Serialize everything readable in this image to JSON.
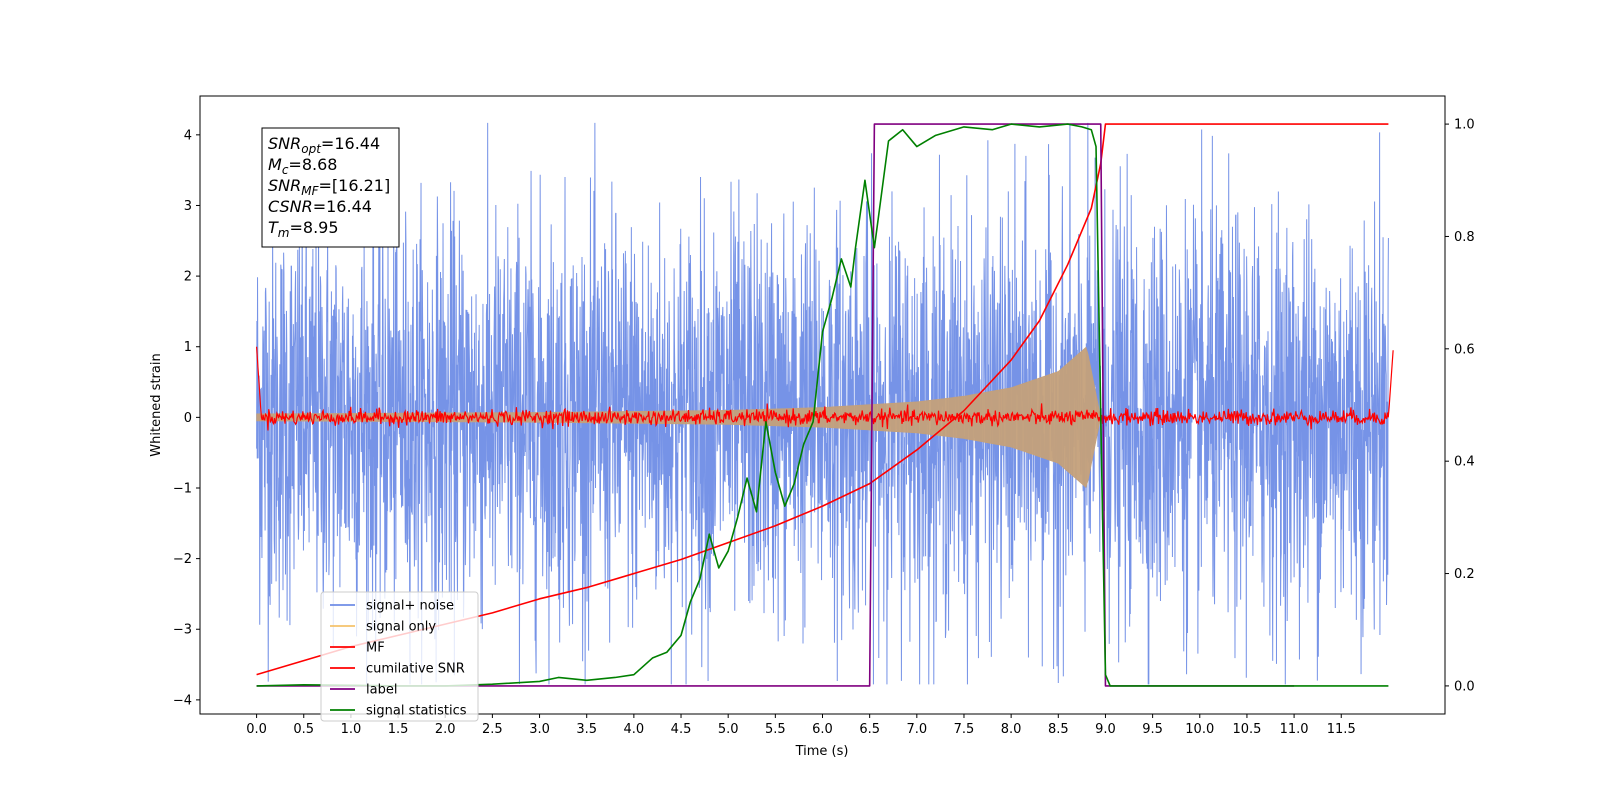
{
  "chart_data": {
    "type": "line",
    "xlabel": "Time (s)",
    "ylabel": "Whitened strain",
    "xlim": [
      -0.6,
      12.6
    ],
    "ylim": [
      -4.2,
      4.55
    ],
    "y2lim": [
      -0.05,
      1.05
    ],
    "x_ticks": [
      "0.0",
      "0.5",
      "1.0",
      "1.5",
      "2.0",
      "2.5",
      "3.0",
      "3.5",
      "4.0",
      "4.5",
      "5.0",
      "5.5",
      "6.0",
      "6.5",
      "7.0",
      "7.5",
      "8.0",
      "8.5",
      "9.0",
      "9.5",
      "10.0",
      "10.5",
      "11.0",
      "11.5"
    ],
    "y_ticks": [
      "−4",
      "−3",
      "−2",
      "−1",
      "0",
      "1",
      "2",
      "3",
      "4"
    ],
    "y2_ticks": [
      "0.0",
      "0.2",
      "0.4",
      "0.6",
      "0.8",
      "1.0"
    ],
    "info_box": [
      {
        "var": "SNR",
        "sub": "opt",
        "value": "=16.44"
      },
      {
        "var": "M",
        "sub": "c",
        "value": "=8.68"
      },
      {
        "var": "SNR",
        "sub": "MF",
        "value": "=[16.21]"
      },
      {
        "var": "CSNR",
        "sub": "",
        "value": "=16.44"
      },
      {
        "var": "T",
        "sub": "m",
        "value": "=8.95"
      }
    ],
    "legend": {
      "placement": "lower-left",
      "entries": [
        {
          "label": "signal+ noise",
          "color": "#6f8de6"
        },
        {
          "label": "signal only",
          "color": "#f5c26b"
        },
        {
          "label": "MF",
          "color": "#ff0000"
        },
        {
          "label": "cumilative SNR",
          "color": "#ff0000"
        },
        {
          "label": "label",
          "color": "#800080"
        },
        {
          "label": "signal statistics",
          "color": "#008000"
        }
      ]
    },
    "series": [
      {
        "name": "signal+ noise",
        "axis": "left",
        "color": "#6f8de6",
        "x_range": [
          0,
          12
        ],
        "envelope_typical": 2.3,
        "envelope_peak": 4.17,
        "min_observed": -3.78
      },
      {
        "name": "signal only",
        "axis": "left",
        "color": "#c4a07a",
        "x_range": [
          0,
          8.95
        ],
        "envelope_x": [
          0,
          3,
          5,
          6,
          7,
          7.5,
          8,
          8.5,
          8.8,
          8.95
        ],
        "envelope_y": [
          0.05,
          0.07,
          0.1,
          0.14,
          0.22,
          0.3,
          0.42,
          0.65,
          1.0,
          0
        ]
      },
      {
        "name": "MF",
        "axis": "left",
        "color": "#ff0000",
        "x": [
          0,
          0.05,
          12,
          12.05
        ],
        "y": [
          1.0,
          0.0,
          0.0,
          0.95
        ]
      },
      {
        "name": "cumilative SNR",
        "axis": "right",
        "color": "#ff0000",
        "x": [
          0,
          0.5,
          1,
          1.5,
          2,
          2.5,
          3,
          3.5,
          4,
          4.5,
          5,
          5.5,
          6,
          6.5,
          7,
          7.5,
          8,
          8.3,
          8.6,
          8.85,
          8.95,
          9.0,
          12.0
        ],
        "y": [
          0.02,
          0.045,
          0.07,
          0.09,
          0.11,
          0.13,
          0.155,
          0.175,
          0.2,
          0.225,
          0.255,
          0.285,
          0.32,
          0.36,
          0.42,
          0.49,
          0.58,
          0.65,
          0.75,
          0.85,
          0.93,
          1.0,
          1.0
        ]
      },
      {
        "name": "label",
        "axis": "right",
        "color": "#800080",
        "x": [
          0,
          6.5,
          6.55,
          8.95,
          9.0,
          11.0
        ],
        "y": [
          0,
          0,
          1,
          1,
          0,
          0
        ]
      },
      {
        "name": "signal statistics",
        "axis": "right",
        "color": "#008000",
        "x": [
          0,
          0.5,
          1,
          1.5,
          2,
          2.5,
          3,
          3.2,
          3.5,
          3.8,
          4.0,
          4.2,
          4.35,
          4.5,
          4.6,
          4.7,
          4.8,
          4.9,
          5.0,
          5.1,
          5.2,
          5.3,
          5.4,
          5.5,
          5.6,
          5.7,
          5.8,
          5.9,
          6.0,
          6.1,
          6.2,
          6.3,
          6.35,
          6.45,
          6.55,
          6.7,
          6.85,
          7.0,
          7.2,
          7.5,
          7.8,
          8.0,
          8.3,
          8.6,
          8.75,
          8.85,
          8.9,
          8.95,
          9.0,
          9.05,
          12.0
        ],
        "y": [
          0.0,
          0.002,
          0.001,
          0.0,
          0.0,
          0.003,
          0.008,
          0.015,
          0.01,
          0.015,
          0.02,
          0.05,
          0.06,
          0.09,
          0.15,
          0.19,
          0.27,
          0.21,
          0.24,
          0.3,
          0.37,
          0.31,
          0.47,
          0.38,
          0.32,
          0.36,
          0.43,
          0.47,
          0.63,
          0.69,
          0.76,
          0.71,
          0.78,
          0.9,
          0.78,
          0.97,
          0.99,
          0.96,
          0.98,
          0.995,
          0.99,
          1.0,
          0.995,
          1.0,
          0.995,
          0.99,
          0.96,
          0.48,
          0.02,
          0.0,
          0.0
        ]
      }
    ]
  }
}
